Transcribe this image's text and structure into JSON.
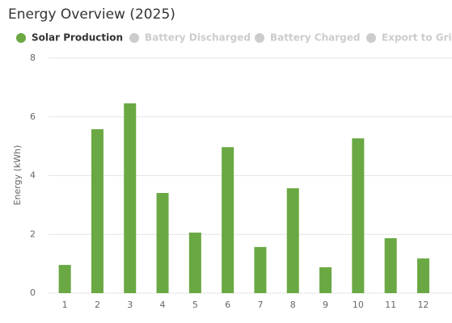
{
  "chart_data": {
    "type": "bar",
    "title": "Energy Overview (2025)",
    "y_label": "Energy (kWh)",
    "categories": [
      "1",
      "2",
      "3",
      "4",
      "5",
      "6",
      "7",
      "8",
      "9",
      "10",
      "11",
      "12"
    ],
    "series": [
      {
        "name": "Solar Production",
        "color": "#6aa843",
        "visible": true,
        "values": [
          0.96,
          5.58,
          6.46,
          3.41,
          2.06,
          4.97,
          1.57,
          3.57,
          0.88,
          5.27,
          1.87,
          1.18
        ]
      },
      {
        "name": "Battery Discharged",
        "color": "#cccccc",
        "visible": false
      },
      {
        "name": "Battery Charged",
        "color": "#cccccc",
        "visible": false
      },
      {
        "name": "Export to Grid",
        "color": "#cccccc",
        "visible": false
      }
    ],
    "ylim": [
      0,
      8
    ],
    "yticks": [
      0,
      2,
      4,
      6,
      8
    ],
    "grid": true
  }
}
